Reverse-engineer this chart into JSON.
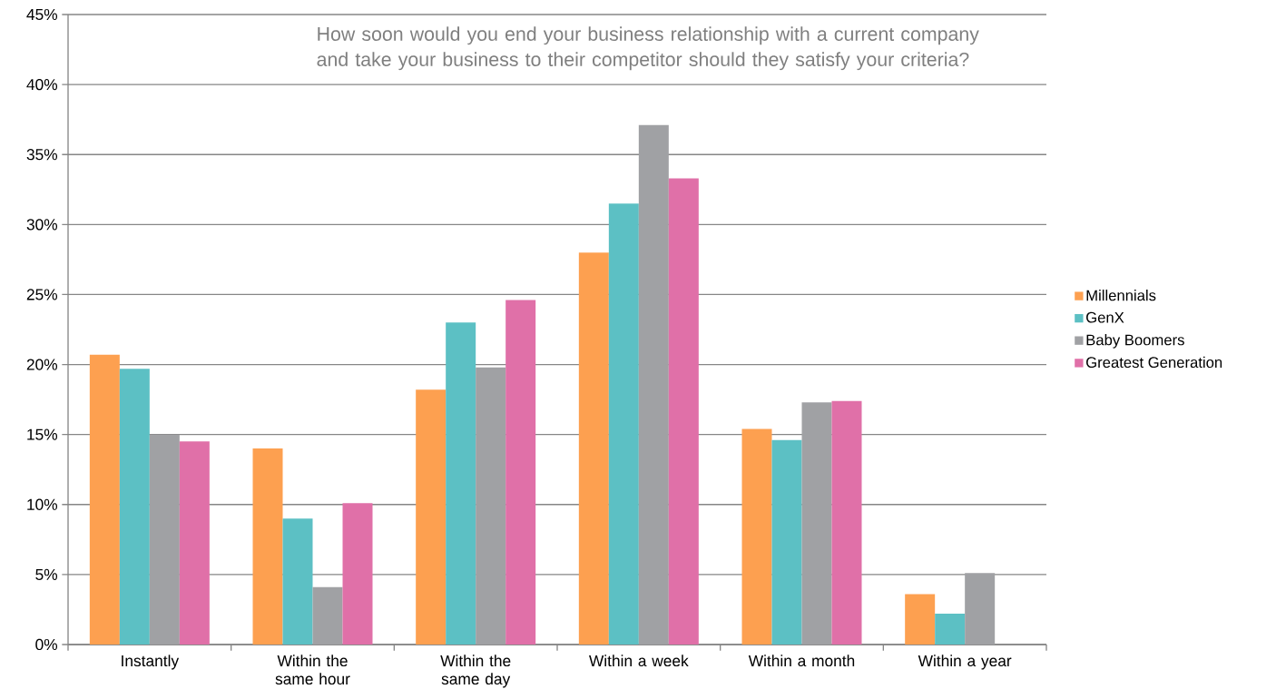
{
  "chart_data": {
    "type": "bar",
    "title": "How soon would you end your business relationship with a current company and take your business to their competitor should they satisfy your criteria?",
    "categories": [
      "Instantly",
      "Within the same hour",
      "Within the same day",
      "Within a week",
      "Within a month",
      "Within a year"
    ],
    "series": [
      {
        "name": "Millennials",
        "color": "#fda050",
        "values": [
          20.7,
          14.0,
          18.2,
          28.0,
          15.4,
          3.6
        ]
      },
      {
        "name": "GenX",
        "color": "#5cc0c4",
        "values": [
          19.7,
          9.0,
          23.0,
          31.5,
          14.6,
          2.2
        ]
      },
      {
        "name": "Baby Boomers",
        "color": "#a0a1a4",
        "values": [
          15.0,
          4.1,
          19.8,
          37.1,
          17.3,
          5.1
        ]
      },
      {
        "name": "Greatest Generation",
        "color": "#e070a8",
        "values": [
          14.5,
          10.1,
          24.6,
          33.3,
          17.4,
          null
        ]
      }
    ],
    "ylim": [
      0,
      45
    ],
    "yticks": [
      {
        "value": 0,
        "label": "0%"
      },
      {
        "value": 5,
        "label": "5%"
      },
      {
        "value": 10,
        "label": "10%"
      },
      {
        "value": 15,
        "label": "15%"
      },
      {
        "value": 20,
        "label": "20%"
      },
      {
        "value": 25,
        "label": "25%"
      },
      {
        "value": 30,
        "label": "30%"
      },
      {
        "value": 35,
        "label": "35%"
      },
      {
        "value": 40,
        "label": "40%"
      },
      {
        "value": 45,
        "label": "45%"
      }
    ],
    "grid": "y",
    "legend": "right"
  }
}
